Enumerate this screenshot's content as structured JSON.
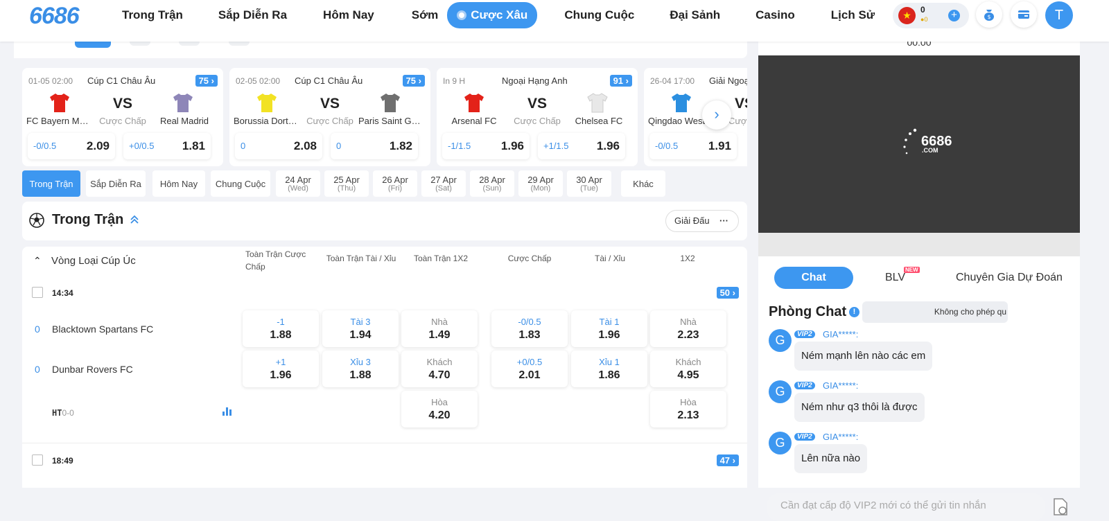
{
  "header": {
    "logo": "6686",
    "nav": [
      "Trong Trận",
      "Sắp Diễn Ra",
      "Hôm Nay",
      "Sớm",
      "Cược Xâu",
      "Chung Cuộc",
      "Đại Sảnh",
      "Casino",
      "Lịch Sử"
    ],
    "active_nav": "Cược Xâu",
    "balance": "0",
    "coins": "0",
    "avatar_letter": "T"
  },
  "featured": [
    {
      "time": "01-05 02:00",
      "league": "Cúp C1 Châu Âu",
      "count": "75",
      "home": "FC Bayern Munich",
      "away": "Real Madrid",
      "home_color": "#e32219",
      "away_color": "#8e86b8",
      "vs": "VS",
      "handicap_label": "Cược Chấp",
      "home_handicap": "-0/0.5",
      "home_odd": "2.09",
      "away_handicap": "+0/0.5",
      "away_odd": "1.81"
    },
    {
      "time": "02-05 02:00",
      "league": "Cúp C1 Châu Âu",
      "count": "75",
      "home": "Borussia Dortmund",
      "away": "Paris Saint Germain",
      "home_color": "#f2e224",
      "away_color": "#6f6f6f",
      "vs": "VS",
      "handicap_label": "Cược Chấp",
      "home_handicap": "0",
      "home_odd": "2.08",
      "away_handicap": "0",
      "away_odd": "1.82"
    },
    {
      "time": "In 9 H",
      "league": "Ngoại Hạng Anh",
      "count": "91",
      "home": "Arsenal FC",
      "away": "Chelsea FC",
      "home_color": "#e32219",
      "away_color": "#e8e8e8",
      "vs": "VS",
      "handicap_label": "Cược Chấp",
      "home_handicap": "-1/1.5",
      "home_odd": "1.96",
      "away_handicap": "+1/1.5",
      "away_odd": "1.96"
    },
    {
      "time": "26-04 17:00",
      "league": "Giải Ngoại",
      "count": "",
      "home": "Qingdao West Coast",
      "away": "",
      "home_color": "#2b8fe0",
      "away_color": "#ffffff",
      "vs": "VS",
      "handicap_label": "Cược C",
      "home_handicap": "-0/0.5",
      "home_odd": "1.91",
      "away_handicap": "",
      "away_odd": ""
    }
  ],
  "filters": [
    {
      "label": "Trong Trận",
      "sub": ""
    },
    {
      "label": "Sắp Diễn Ra",
      "sub": ""
    },
    {
      "label": "Hôm Nay",
      "sub": ""
    },
    {
      "label": "Chung Cuộc",
      "sub": ""
    },
    {
      "label": "24 Apr",
      "sub": "(Wed)"
    },
    {
      "label": "25 Apr",
      "sub": "(Thu)"
    },
    {
      "label": "26 Apr",
      "sub": "(Fri)"
    },
    {
      "label": "27 Apr",
      "sub": "(Sat)"
    },
    {
      "label": "28 Apr",
      "sub": "(Sun)"
    },
    {
      "label": "29 Apr",
      "sub": "(Mon)"
    },
    {
      "label": "30 Apr",
      "sub": "(Tue)"
    },
    {
      "label": "Khác",
      "sub": ""
    }
  ],
  "section": {
    "title": "Trong Trận",
    "league_button": "Giải Đấu",
    "more": "···"
  },
  "table": {
    "league": "Vòng Loại Cúp Úc",
    "headers": [
      "Toàn Trận Cược Chấp",
      "Toàn Trận Tài / Xỉu",
      "Toàn Trận 1X2",
      "Cược Chấp",
      "Tài / Xỉu",
      "1X2"
    ],
    "match1": {
      "time": "14:34",
      "count": "50",
      "home": "Blacktown Spartans FC",
      "away": "Dunbar Rovers FC",
      "home_score": "0",
      "away_score": "0",
      "ht_label": "HT",
      "ht_score": "0-0",
      "odds": {
        "ft_hcap_home": {
          "l": "-1",
          "v": "1.88"
        },
        "ft_hcap_away": {
          "l": "+1",
          "v": "1.96"
        },
        "ft_ou_over": {
          "l": "Tài 3",
          "v": "1.94"
        },
        "ft_ou_under": {
          "l": "Xỉu 3",
          "v": "1.88"
        },
        "ft_1x2_home": {
          "l": "Nhà",
          "v": "1.49"
        },
        "ft_1x2_away": {
          "l": "Khách",
          "v": "4.70"
        },
        "ft_1x2_draw": {
          "l": "Hòa",
          "v": "4.20"
        },
        "hcap_home": {
          "l": "-0/0.5",
          "v": "1.83"
        },
        "hcap_away": {
          "l": "+0/0.5",
          "v": "2.01"
        },
        "ou_over": {
          "l": "Tài 1",
          "v": "1.96"
        },
        "ou_under": {
          "l": "Xỉu 1",
          "v": "1.86"
        },
        "x2_home": {
          "l": "Nhà",
          "v": "2.23"
        },
        "x2_away": {
          "l": "Khách",
          "v": "4.95"
        },
        "x2_draw": {
          "l": "Hòa",
          "v": "2.13"
        }
      }
    },
    "match2": {
      "time": "18:49",
      "count": "47"
    }
  },
  "video": {
    "time": "00:00",
    "logo": "6686",
    "logo_sub": ".COM"
  },
  "chat": {
    "tabs": [
      "Chat",
      "BLV",
      "Chuyên Gia Dự Đoán"
    ],
    "new_badge": "NEW",
    "title": "Phòng Chat",
    "notice": "Không cho phép qu",
    "messages": [
      {
        "avatar": "G",
        "vip": "VIP2",
        "user": "GIA*****:",
        "text": "Ném mạnh lên nào các em"
      },
      {
        "avatar": "G",
        "vip": "VIP2",
        "user": "GIA*****:",
        "text": "Ném như q3 thôi là được"
      },
      {
        "avatar": "G",
        "vip": "VIP2",
        "user": "GIA*****:",
        "text": "Lên nữa nào"
      }
    ],
    "input_placeholder": "Cần đạt cấp độ VIP2 mới có thể gửi tin nhắn"
  }
}
